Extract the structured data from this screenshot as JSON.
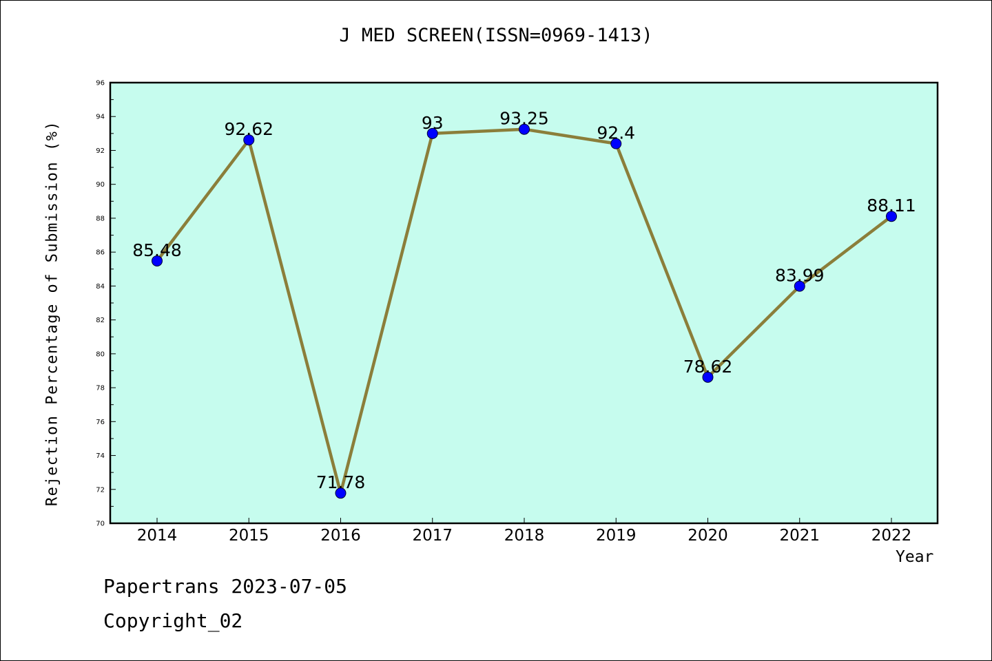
{
  "title": "J MED SCREEN(ISSN=0969-1413)",
  "footer": {
    "line1": "Papertrans 2023-07-05",
    "line2": "Copyright_02"
  },
  "colors": {
    "plot_background": "#c6fcee",
    "line": "#8b7e3a",
    "marker": "#0000ff",
    "axis": "#000000"
  },
  "chart_data": {
    "type": "line",
    "title": "J MED SCREEN(ISSN=0969-1413)",
    "xlabel": "Year",
    "ylabel": "Rejection Percentage of Submission (%)",
    "categories": [
      "2014",
      "2015",
      "2016",
      "2017",
      "2018",
      "2019",
      "2020",
      "2021",
      "2022"
    ],
    "values": [
      85.48,
      92.62,
      71.78,
      93,
      93.25,
      92.4,
      78.62,
      83.99,
      88.11
    ],
    "data_labels": [
      "85.48",
      "92.62",
      "71.78",
      "93",
      "93.25",
      "92.4",
      "78.62",
      "83.99",
      "88.11"
    ],
    "ylim": [
      70,
      96
    ],
    "yticks": [
      "70",
      "72",
      "74",
      "76",
      "78",
      "80",
      "82",
      "84",
      "86",
      "88",
      "90",
      "92",
      "94",
      "96"
    ],
    "grid": false,
    "legend": "none"
  }
}
